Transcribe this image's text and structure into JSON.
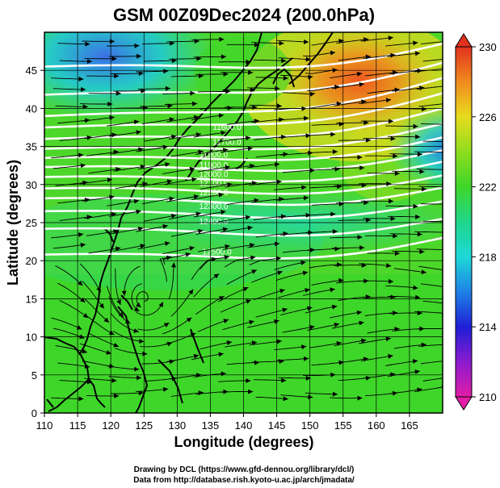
{
  "title": "GSM 00Z09Dec2024 (200.0hPa)",
  "xlabel": "Longitude (degrees)",
  "ylabel": "Latitude  (degrees)",
  "credits": [
    "Drawing by DCL (https://www.gfd-dennou.org/library/dcl/)",
    "Data from http://database.rish.kyoto-u.ac.jp/arch/jmadata/"
  ],
  "colors": {
    "coast": "#000000",
    "contour": "#ffffff",
    "streamline": "#000000",
    "grid": "#000000"
  },
  "chart_data": {
    "type": "heatmap",
    "x_ticks": [
      110,
      115,
      120,
      125,
      130,
      135,
      140,
      145,
      150,
      155,
      160,
      165
    ],
    "y_ticks": [
      0,
      5,
      10,
      15,
      20,
      25,
      30,
      35,
      40,
      45
    ],
    "xlim": [
      110,
      170
    ],
    "ylim": [
      0,
      50
    ],
    "grid": true,
    "colorbar": {
      "ticks": [
        210,
        214,
        218,
        222,
        226,
        230
      ],
      "range": [
        210,
        230
      ]
    },
    "contours": [
      {
        "label": "11600.0",
        "lon": 137.5,
        "lat": 37.2
      },
      {
        "label": "11700.0",
        "lon": 137.5,
        "lat": 35.2
      },
      {
        "label": "11800.0",
        "lon": 135.5,
        "lat": 33.6
      },
      {
        "label": "11900.0",
        "lon": 135.5,
        "lat": 32.2
      },
      {
        "label": "12000.0",
        "lon": 135.5,
        "lat": 31.0
      },
      {
        "label": "12100.0",
        "lon": 135.5,
        "lat": 29.8
      },
      {
        "label": "12200.0",
        "lon": 135.5,
        "lat": 28.6
      },
      {
        "label": "12300.0",
        "lon": 135.5,
        "lat": 26.8
      },
      {
        "label": "12400.0",
        "lon": 135.5,
        "lat": 24.8
      },
      {
        "label": "12500.0",
        "lon": 136.0,
        "lat": 20.8
      }
    ],
    "contour_lines_lat_at_110": [
      45.5,
      41.8,
      39.0,
      37.5,
      36.0,
      34.7,
      33.5,
      32.3,
      31.0,
      29.5,
      28.2,
      26.5,
      24.2,
      20.8
    ],
    "contour_lines_lat_at_170": [
      48.5,
      46.0,
      44.0,
      42.0,
      40.0,
      38.0,
      36.2,
      34.5,
      33.0,
      31.2,
      29.6,
      27.8,
      25.5,
      23.0
    ]
  }
}
